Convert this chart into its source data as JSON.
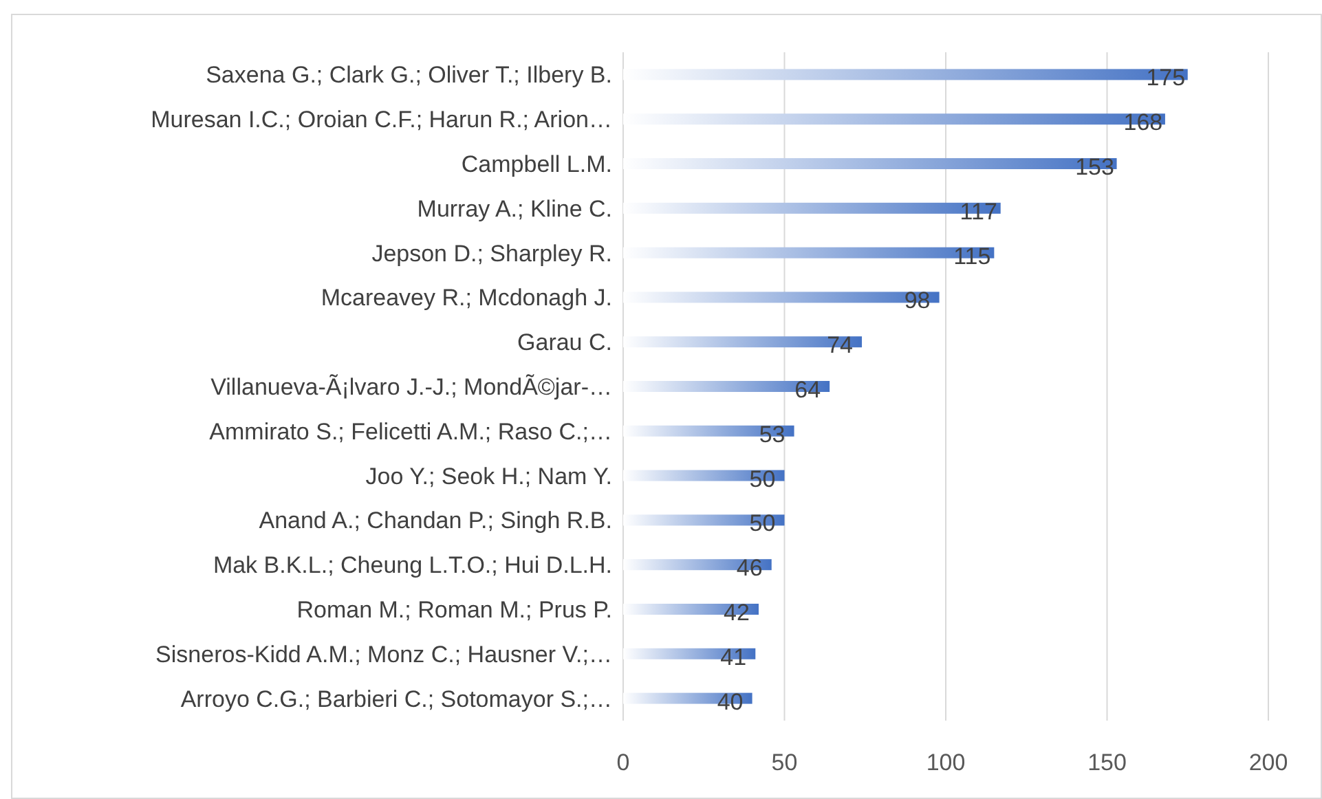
{
  "chart_data": {
    "type": "bar",
    "orientation": "horizontal",
    "categories": [
      "Saxena G.; Clark G.; Oliver T.; Ilbery B.",
      "Muresan I.C.; Oroian C.F.; Harun R.; Arion…",
      "Campbell L.M.",
      "Murray A.; Kline C.",
      "Jepson D.; Sharpley R.",
      "Mcareavey R.; Mcdonagh J.",
      "Garau C.",
      "Villanueva-Ã¡lvaro J.-J.; MondÃ©jar-…",
      "Ammirato S.; Felicetti A.M.; Raso C.;…",
      "Joo Y.; Seok H.; Nam Y.",
      "Anand A.; Chandan P.; Singh R.B.",
      "Mak B.K.L.; Cheung L.T.O.; Hui D.L.H.",
      "Roman M.; Roman M.; Prus P.",
      "Sisneros-Kidd A.M.; Monz C.; Hausner V.;…",
      "Arroyo C.G.; Barbieri C.; Sotomayor S.;…"
    ],
    "values": [
      175,
      168,
      153,
      117,
      115,
      98,
      74,
      64,
      53,
      50,
      50,
      46,
      42,
      41,
      40
    ],
    "color": "#4472c4",
    "xlim": [
      0,
      200
    ],
    "xticks": [
      0,
      50,
      100,
      150,
      200
    ],
    "grid": "x",
    "data_labels": true
  }
}
